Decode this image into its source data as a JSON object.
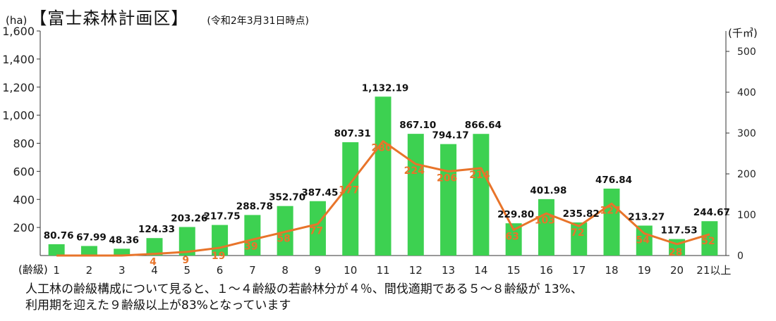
{
  "header": {
    "unit_left": "(ha)",
    "title": "【富士森林計画区】",
    "as_of": "(令和2年3月31日時点)",
    "unit_right": "(千㎥)"
  },
  "xaxis_name": "(齢級)",
  "caption": {
    "line1": "人工林の齢級構成について見ると、１～４齢級の若齢林分が４％、間伐適期である５～８齢級が 13%、",
    "line2": "利用期を迎えた９齢級以上が83%となっています"
  },
  "colors": {
    "bar": "#3dd151",
    "line": "#e8742a",
    "axis": "#333333"
  },
  "chart_data": {
    "type": "bar",
    "categories": [
      "1",
      "2",
      "3",
      "4",
      "5",
      "6",
      "7",
      "8",
      "9",
      "10",
      "11",
      "12",
      "13",
      "14",
      "15",
      "16",
      "17",
      "18",
      "19",
      "20",
      "21以上"
    ],
    "series": [
      {
        "type": "bar",
        "axis": "left",
        "values": [
          80.76,
          67.99,
          48.36,
          124.33,
          203.26,
          217.75,
          288.78,
          352.7,
          387.45,
          807.31,
          1132.19,
          867.1,
          794.17,
          866.64,
          229.8,
          401.98,
          235.82,
          476.84,
          213.27,
          117.53,
          244.67
        ],
        "labels": [
          "80.76",
          "67.99",
          "48.36",
          "124.33",
          "203.26",
          "217.75",
          "288.78",
          "352.70",
          "387.45",
          "807.31",
          "1,132.19",
          "867.10",
          "794.17",
          "866.64",
          "229.80",
          "401.98",
          "235.82",
          "476.84",
          "213.27",
          "117.53",
          "244.67"
        ]
      },
      {
        "type": "line",
        "axis": "right",
        "values": [
          0,
          0,
          0,
          4,
          9,
          19,
          39,
          58,
          77,
          177,
          280,
          224,
          206,
          214,
          63,
          103,
          72,
          127,
          54,
          28,
          52
        ],
        "labels": [
          "",
          "",
          "",
          "4",
          "9",
          "19",
          "39",
          "58",
          "77",
          "177",
          "280",
          "224",
          "206",
          "214",
          "63",
          "103",
          "72",
          "127",
          "54",
          "28",
          "52"
        ]
      }
    ],
    "ylim_left": [
      0,
      1600
    ],
    "yticks_left": [
      "200",
      "400",
      "600",
      "800",
      "1,000",
      "1,200",
      "1,400",
      "1,600"
    ],
    "yticks_left_values": [
      200,
      400,
      600,
      800,
      1000,
      1200,
      1400,
      1600
    ],
    "ylim_right": [
      0,
      550
    ],
    "yticks_right": [
      "0",
      "100",
      "200",
      "300",
      "400",
      "500"
    ],
    "yticks_right_values": [
      0,
      100,
      200,
      300,
      400,
      500
    ],
    "grid": false,
    "legend": "none"
  }
}
